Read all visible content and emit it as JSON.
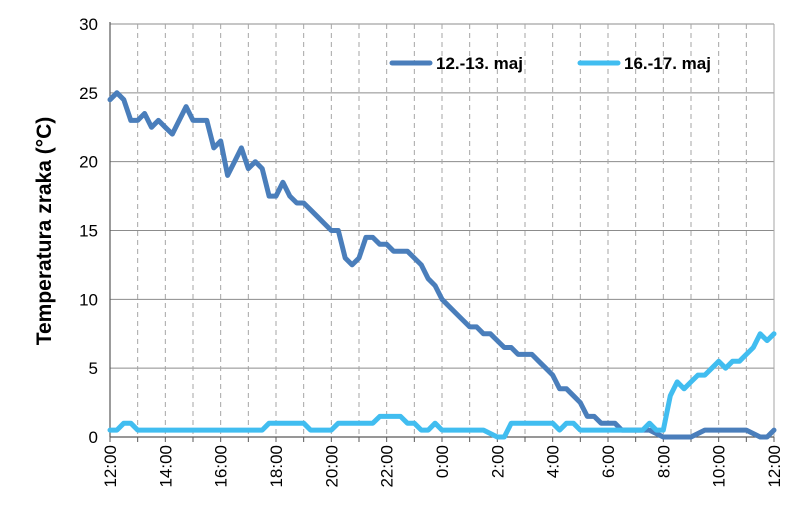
{
  "chart_data": {
    "type": "line",
    "title": "",
    "xlabel": "",
    "ylabel": "Temperatura zraka (°C)",
    "ylim": [
      0,
      30
    ],
    "y_ticks": [
      "0",
      "5",
      "10",
      "15",
      "20",
      "25",
      "30"
    ],
    "x_range_hours": [
      0,
      24
    ],
    "x_ticks": [
      "12:00",
      "14:00",
      "16:00",
      "18:00",
      "20:00",
      "22:00",
      "0:00",
      "2:00",
      "4:00",
      "6:00",
      "8:00",
      "10:00",
      "12:00"
    ],
    "grid": "horizontal solid, vertical dashed (hourly)",
    "legend_position": "top-right",
    "series": [
      {
        "name": "12.-13. maj",
        "color": "#4a7ebb",
        "points": [
          [
            0,
            24.5
          ],
          [
            0.25,
            25
          ],
          [
            0.5,
            24.5
          ],
          [
            0.75,
            23
          ],
          [
            1,
            23
          ],
          [
            1.25,
            23.5
          ],
          [
            1.5,
            22.5
          ],
          [
            1.75,
            23
          ],
          [
            2,
            22.5
          ],
          [
            2.25,
            22
          ],
          [
            2.5,
            23
          ],
          [
            2.75,
            24
          ],
          [
            3,
            23
          ],
          [
            3.25,
            23
          ],
          [
            3.5,
            23
          ],
          [
            3.75,
            21
          ],
          [
            4,
            21.5
          ],
          [
            4.25,
            19
          ],
          [
            4.5,
            20
          ],
          [
            4.75,
            21
          ],
          [
            5,
            19.5
          ],
          [
            5.25,
            20
          ],
          [
            5.5,
            19.5
          ],
          [
            5.75,
            17.5
          ],
          [
            6,
            17.5
          ],
          [
            6.25,
            18.5
          ],
          [
            6.5,
            17.5
          ],
          [
            6.75,
            17
          ],
          [
            7,
            17
          ],
          [
            7.25,
            16.5
          ],
          [
            7.5,
            16
          ],
          [
            7.75,
            15.5
          ],
          [
            8,
            15
          ],
          [
            8.25,
            15
          ],
          [
            8.5,
            13
          ],
          [
            8.75,
            12.5
          ],
          [
            9,
            13
          ],
          [
            9.25,
            14.5
          ],
          [
            9.5,
            14.5
          ],
          [
            9.75,
            14
          ],
          [
            10,
            14
          ],
          [
            10.25,
            13.5
          ],
          [
            10.5,
            13.5
          ],
          [
            10.75,
            13.5
          ],
          [
            11,
            13
          ],
          [
            11.25,
            12.5
          ],
          [
            11.5,
            11.5
          ],
          [
            11.75,
            11
          ],
          [
            12,
            10
          ],
          [
            12.5,
            9
          ],
          [
            13,
            8
          ],
          [
            13.25,
            8
          ],
          [
            13.5,
            7.5
          ],
          [
            13.75,
            7.5
          ],
          [
            14,
            7
          ],
          [
            14.25,
            6.5
          ],
          [
            14.5,
            6.5
          ],
          [
            14.75,
            6
          ],
          [
            15,
            6
          ],
          [
            15.25,
            6
          ],
          [
            15.5,
            5.5
          ],
          [
            15.75,
            5
          ],
          [
            16,
            4.5
          ],
          [
            16.25,
            3.5
          ],
          [
            16.5,
            3.5
          ],
          [
            16.75,
            3
          ],
          [
            17,
            2.5
          ],
          [
            17.25,
            1.5
          ],
          [
            17.5,
            1.5
          ],
          [
            17.75,
            1
          ],
          [
            18,
            1
          ],
          [
            18.25,
            1
          ],
          [
            18.5,
            0.5
          ],
          [
            19,
            0.5
          ],
          [
            19.5,
            0.5
          ],
          [
            20,
            0
          ],
          [
            21,
            0
          ],
          [
            21.5,
            0.5
          ],
          [
            22,
            0.5
          ],
          [
            22.5,
            0.5
          ],
          [
            23,
            0.5
          ],
          [
            23.5,
            0
          ],
          [
            23.75,
            0
          ],
          [
            24,
            0.5
          ]
        ]
      },
      {
        "name": "16.-17. maj",
        "color": "#41bdf0",
        "points": [
          [
            0,
            0.5
          ],
          [
            0.25,
            0.5
          ],
          [
            0.5,
            1
          ],
          [
            0.75,
            1
          ],
          [
            1,
            0.5
          ],
          [
            2,
            0.5
          ],
          [
            3,
            0.5
          ],
          [
            4,
            0.5
          ],
          [
            5,
            0.5
          ],
          [
            5.5,
            0.5
          ],
          [
            5.75,
            1
          ],
          [
            6,
            1
          ],
          [
            7,
            1
          ],
          [
            7.25,
            0.5
          ],
          [
            7.5,
            0.5
          ],
          [
            8,
            0.5
          ],
          [
            8.25,
            1
          ],
          [
            9,
            1
          ],
          [
            9.5,
            1
          ],
          [
            9.75,
            1.5
          ],
          [
            10,
            1.5
          ],
          [
            10.5,
            1.5
          ],
          [
            10.75,
            1
          ],
          [
            11,
            1
          ],
          [
            11.25,
            0.5
          ],
          [
            11.5,
            0.5
          ],
          [
            11.75,
            1
          ],
          [
            12,
            0.5
          ],
          [
            13,
            0.5
          ],
          [
            13.5,
            0.5
          ],
          [
            14,
            0
          ],
          [
            14.25,
            0
          ],
          [
            14.5,
            1
          ],
          [
            15,
            1
          ],
          [
            15.5,
            1
          ],
          [
            16,
            1
          ],
          [
            16.25,
            0.5
          ],
          [
            16.5,
            1
          ],
          [
            16.75,
            1
          ],
          [
            17,
            0.5
          ],
          [
            17.5,
            0.5
          ],
          [
            18,
            0.5
          ],
          [
            18.5,
            0.5
          ],
          [
            19,
            0.5
          ],
          [
            19.25,
            0.5
          ],
          [
            19.5,
            1
          ],
          [
            19.75,
            0.5
          ],
          [
            20,
            0.5
          ],
          [
            20.25,
            3
          ],
          [
            20.5,
            4
          ],
          [
            20.75,
            3.5
          ],
          [
            21,
            4
          ],
          [
            21.25,
            4.5
          ],
          [
            21.5,
            4.5
          ],
          [
            21.75,
            5
          ],
          [
            22,
            5.5
          ],
          [
            22.25,
            5
          ],
          [
            22.5,
            5.5
          ],
          [
            22.75,
            5.5
          ],
          [
            23,
            6
          ],
          [
            23.25,
            6.5
          ],
          [
            23.5,
            7.5
          ],
          [
            23.75,
            7
          ],
          [
            24,
            7.5
          ]
        ]
      }
    ]
  }
}
